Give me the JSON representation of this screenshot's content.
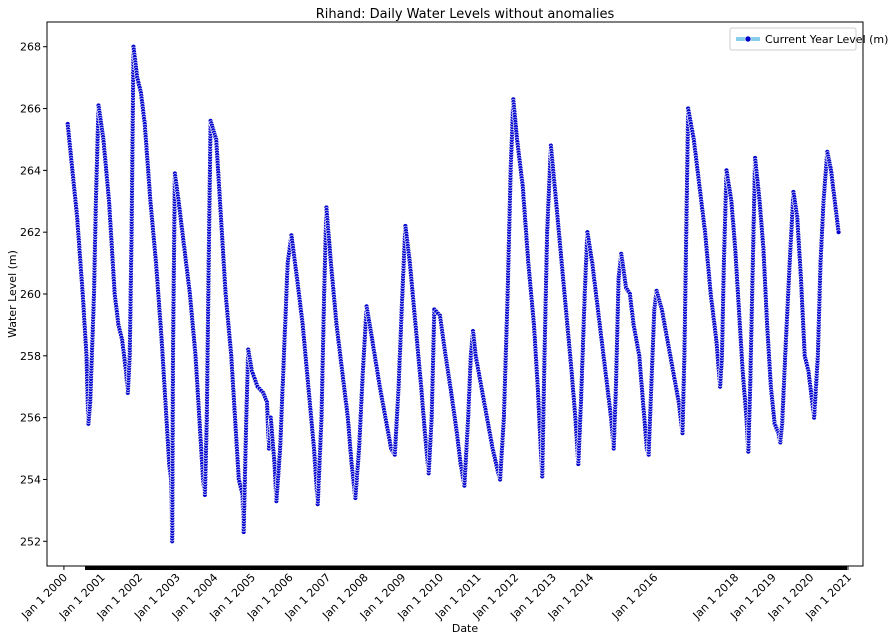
{
  "chart_data": {
    "type": "line",
    "title": "Rihand: Daily Water Levels without anomalies",
    "xlabel": "Date",
    "ylabel": "Water Level (m)",
    "ylim": [
      251.2,
      268.8
    ],
    "xlim": [
      1999.55,
      2021.25
    ],
    "y_ticks": [
      252,
      254,
      256,
      258,
      260,
      262,
      264,
      266,
      268
    ],
    "x_ticks": [
      {
        "label": "Jan 1 2000",
        "x": 2000
      },
      {
        "label": "Jan 1 2001",
        "x": 2001
      },
      {
        "label": "Jan 1 2002",
        "x": 2002
      },
      {
        "label": "Jan 1 2003",
        "x": 2003
      },
      {
        "label": "Jan 1 2004",
        "x": 2004
      },
      {
        "label": "Jan 1 2005",
        "x": 2005
      },
      {
        "label": "Jan 1 2006",
        "x": 2006
      },
      {
        "label": "Jan 1 2007",
        "x": 2007
      },
      {
        "label": "Jan 1 2008",
        "x": 2008
      },
      {
        "label": "Jan 1 2009",
        "x": 2009
      },
      {
        "label": "Jan 1 2010",
        "x": 2010
      },
      {
        "label": "Jan 1 2011",
        "x": 2011
      },
      {
        "label": "Jan 1 2012",
        "x": 2012
      },
      {
        "label": "Jan 1 2013",
        "x": 2013
      },
      {
        "label": "Jan 1 2014",
        "x": 2014
      },
      {
        "label": "Jan 1 2016",
        "x": 2015.7
      },
      {
        "label": "Jan 1 2018",
        "x": 2017.85
      },
      {
        "label": "Jan 1 2019",
        "x": 2018.85
      },
      {
        "label": "Jan 1 2020",
        "x": 2019.85
      },
      {
        "label": "Jan 1 2021",
        "x": 2020.85
      }
    ],
    "legend": {
      "label": "Current Year Level (m)",
      "position": "top-right"
    },
    "series": [
      {
        "name": "Current Year Level (m)",
        "line_color": "#87ceeb",
        "marker_color": "#0000cd",
        "marker_edge": "#ffffff",
        "points": [
          [
            2000.1,
            265.5
          ],
          [
            2000.35,
            262.5
          ],
          [
            2000.5,
            260.0
          ],
          [
            2000.6,
            258.0
          ],
          [
            2000.65,
            255.8
          ],
          [
            2000.7,
            256.5
          ],
          [
            2000.8,
            260.0
          ],
          [
            2000.85,
            263.0
          ],
          [
            2000.92,
            266.1
          ],
          [
            2001.05,
            265.0
          ],
          [
            2001.2,
            263.0
          ],
          [
            2001.35,
            260.0
          ],
          [
            2001.45,
            259.0
          ],
          [
            2001.55,
            258.5
          ],
          [
            2001.6,
            258.0
          ],
          [
            2001.65,
            257.5
          ],
          [
            2001.7,
            256.8
          ],
          [
            2001.75,
            258.0
          ],
          [
            2001.8,
            262.0
          ],
          [
            2001.85,
            268.0
          ],
          [
            2001.95,
            267.0
          ],
          [
            2002.05,
            266.5
          ],
          [
            2002.15,
            265.5
          ],
          [
            2002.3,
            263.0
          ],
          [
            2002.45,
            261.0
          ],
          [
            2002.6,
            258.5
          ],
          [
            2002.7,
            256.5
          ],
          [
            2002.8,
            254.5
          ],
          [
            2002.85,
            254.0
          ],
          [
            2002.88,
            252.0
          ],
          [
            2002.9,
            258.0
          ],
          [
            2002.95,
            263.9
          ],
          [
            2003.05,
            263.0
          ],
          [
            2003.2,
            261.5
          ],
          [
            2003.35,
            260.0
          ],
          [
            2003.5,
            258.0
          ],
          [
            2003.6,
            256.0
          ],
          [
            2003.7,
            254.0
          ],
          [
            2003.75,
            253.5
          ],
          [
            2003.8,
            256.0
          ],
          [
            2003.85,
            261.0
          ],
          [
            2003.9,
            265.6
          ],
          [
            2004.05,
            265.0
          ],
          [
            2004.15,
            263.0
          ],
          [
            2004.3,
            260.0
          ],
          [
            2004.45,
            258.0
          ],
          [
            2004.55,
            256.0
          ],
          [
            2004.65,
            254.0
          ],
          [
            2004.75,
            253.5
          ],
          [
            2004.78,
            252.3
          ],
          [
            2004.85,
            256.0
          ],
          [
            2004.9,
            258.2
          ],
          [
            2005.0,
            257.5
          ],
          [
            2005.15,
            257.0
          ],
          [
            2005.3,
            256.8
          ],
          [
            2005.4,
            256.5
          ],
          [
            2005.45,
            255.0
          ],
          [
            2005.5,
            256.0
          ],
          [
            2005.6,
            254.5
          ],
          [
            2005.65,
            253.3
          ],
          [
            2005.75,
            255.0
          ],
          [
            2005.85,
            258.0
          ],
          [
            2005.95,
            261.0
          ],
          [
            2006.05,
            261.9
          ],
          [
            2006.2,
            260.5
          ],
          [
            2006.35,
            259.0
          ],
          [
            2006.5,
            257.0
          ],
          [
            2006.65,
            255.0
          ],
          [
            2006.75,
            253.2
          ],
          [
            2006.85,
            256.0
          ],
          [
            2006.92,
            260.0
          ],
          [
            2006.98,
            262.8
          ],
          [
            2007.1,
            261.0
          ],
          [
            2007.25,
            259.0
          ],
          [
            2007.4,
            257.5
          ],
          [
            2007.55,
            256.0
          ],
          [
            2007.65,
            254.5
          ],
          [
            2007.75,
            253.4
          ],
          [
            2007.85,
            255.0
          ],
          [
            2007.95,
            257.5
          ],
          [
            2008.05,
            259.6
          ],
          [
            2008.2,
            258.5
          ],
          [
            2008.4,
            257.0
          ],
          [
            2008.55,
            256.0
          ],
          [
            2008.7,
            255.0
          ],
          [
            2008.8,
            254.8
          ],
          [
            2008.9,
            257.0
          ],
          [
            2009.0,
            260.0
          ],
          [
            2009.08,
            262.2
          ],
          [
            2009.2,
            261.0
          ],
          [
            2009.35,
            259.0
          ],
          [
            2009.5,
            257.0
          ],
          [
            2009.6,
            255.5
          ],
          [
            2009.7,
            254.2
          ],
          [
            2009.78,
            256.0
          ],
          [
            2009.85,
            259.5
          ],
          [
            2010.0,
            259.3
          ],
          [
            2010.15,
            258.0
          ],
          [
            2010.3,
            256.8
          ],
          [
            2010.45,
            255.5
          ],
          [
            2010.55,
            254.5
          ],
          [
            2010.65,
            253.8
          ],
          [
            2010.75,
            256.0
          ],
          [
            2010.82,
            258.0
          ],
          [
            2010.88,
            258.8
          ],
          [
            2010.95,
            258.0
          ],
          [
            2011.1,
            257.0
          ],
          [
            2011.25,
            256.0
          ],
          [
            2011.4,
            255.0
          ],
          [
            2011.55,
            254.2
          ],
          [
            2011.6,
            254.0
          ],
          [
            2011.7,
            256.0
          ],
          [
            2011.8,
            260.0
          ],
          [
            2011.88,
            264.0
          ],
          [
            2011.95,
            266.3
          ],
          [
            2012.05,
            265.0
          ],
          [
            2012.2,
            263.5
          ],
          [
            2012.35,
            261.0
          ],
          [
            2012.5,
            259.0
          ],
          [
            2012.6,
            257.0
          ],
          [
            2012.68,
            255.0
          ],
          [
            2012.72,
            254.1
          ],
          [
            2012.78,
            258.0
          ],
          [
            2012.85,
            262.0
          ],
          [
            2012.95,
            264.8
          ],
          [
            2013.05,
            263.5
          ],
          [
            2013.2,
            261.5
          ],
          [
            2013.35,
            259.5
          ],
          [
            2013.5,
            257.5
          ],
          [
            2013.6,
            256.0
          ],
          [
            2013.68,
            254.5
          ],
          [
            2013.75,
            256.5
          ],
          [
            2013.85,
            260.0
          ],
          [
            2013.92,
            262.0
          ],
          [
            2014.05,
            261.0
          ],
          [
            2014.2,
            259.5
          ],
          [
            2014.35,
            258.0
          ],
          [
            2014.45,
            257.0
          ],
          [
            2014.55,
            256.0
          ],
          [
            2014.62,
            255.0
          ],
          [
            2014.68,
            257.0
          ],
          [
            2014.75,
            260.5
          ],
          [
            2014.82,
            261.3
          ],
          [
            2014.95,
            260.2
          ],
          [
            2015.05,
            260.0
          ],
          [
            2015.15,
            259.0
          ],
          [
            2015.3,
            258.0
          ],
          [
            2015.4,
            256.5
          ],
          [
            2015.5,
            255.0
          ],
          [
            2015.55,
            254.8
          ],
          [
            2015.62,
            257.0
          ],
          [
            2015.7,
            259.5
          ],
          [
            2015.76,
            260.1
          ],
          [
            2015.9,
            259.5
          ],
          [
            2016.05,
            258.5
          ],
          [
            2016.2,
            257.5
          ],
          [
            2016.35,
            256.5
          ],
          [
            2016.45,
            255.5
          ],
          [
            2016.5,
            258.0
          ],
          [
            2016.55,
            262.0
          ],
          [
            2016.6,
            266.0
          ],
          [
            2016.75,
            265.0
          ],
          [
            2016.9,
            263.5
          ],
          [
            2017.05,
            262.0
          ],
          [
            2017.2,
            260.0
          ],
          [
            2017.35,
            258.5
          ],
          [
            2017.45,
            257.0
          ],
          [
            2017.5,
            258.0
          ],
          [
            2017.55,
            261.0
          ],
          [
            2017.62,
            264.0
          ],
          [
            2017.75,
            263.0
          ],
          [
            2017.85,
            261.5
          ],
          [
            2017.95,
            259.5
          ],
          [
            2018.05,
            257.5
          ],
          [
            2018.15,
            256.0
          ],
          [
            2018.2,
            254.9
          ],
          [
            2018.25,
            257.0
          ],
          [
            2018.32,
            261.0
          ],
          [
            2018.38,
            264.4
          ],
          [
            2018.5,
            263.0
          ],
          [
            2018.6,
            261.5
          ],
          [
            2018.7,
            259.0
          ],
          [
            2018.8,
            257.0
          ],
          [
            2018.9,
            255.8
          ],
          [
            2019.0,
            255.5
          ],
          [
            2019.05,
            255.2
          ],
          [
            2019.1,
            255.8
          ],
          [
            2019.2,
            258.5
          ],
          [
            2019.3,
            261.0
          ],
          [
            2019.4,
            263.3
          ],
          [
            2019.5,
            262.5
          ],
          [
            2019.6,
            260.5
          ],
          [
            2019.7,
            258.0
          ],
          [
            2019.8,
            257.5
          ],
          [
            2019.9,
            256.5
          ],
          [
            2019.95,
            256.0
          ],
          [
            2020.05,
            258.0
          ],
          [
            2020.12,
            261.0
          ],
          [
            2020.2,
            263.0
          ],
          [
            2020.3,
            264.6
          ],
          [
            2020.4,
            264.0
          ],
          [
            2020.5,
            263.0
          ],
          [
            2020.6,
            262.0
          ]
        ]
      }
    ]
  }
}
